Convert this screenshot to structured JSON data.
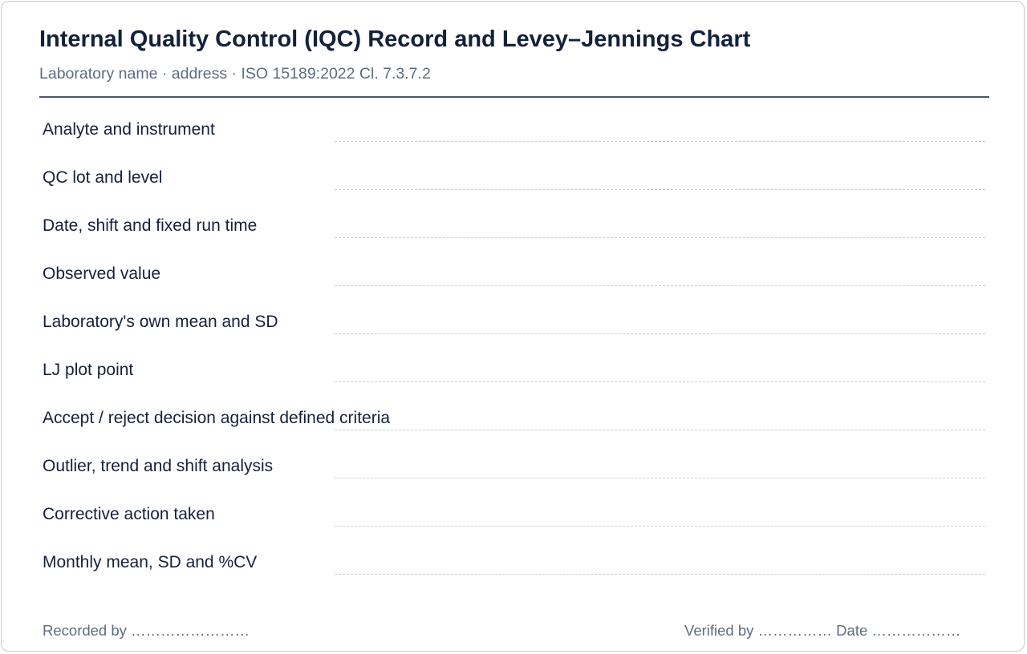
{
  "header": {
    "title": "Internal Quality Control (IQC) Record and Levey–Jennings Chart",
    "subtitle": "Laboratory name · address · ISO 15189:2022 Cl. 7.3.7.2"
  },
  "fields": [
    {
      "label": "Analyte and instrument",
      "value": ""
    },
    {
      "label": "QC lot and level",
      "value": ""
    },
    {
      "label": "Date, shift and fixed run time",
      "value": ""
    },
    {
      "label": "Observed value",
      "value": ""
    },
    {
      "label": "Laboratory's own mean and SD",
      "value": ""
    },
    {
      "label": "LJ plot point",
      "value": ""
    },
    {
      "label": "Accept / reject decision against defined criteria",
      "value": ""
    },
    {
      "label": "Outlier, trend and shift analysis",
      "value": ""
    },
    {
      "label": "Corrective action taken",
      "value": ""
    },
    {
      "label": "Monthly mean, SD and %CV",
      "value": ""
    }
  ],
  "footer": {
    "recorded_by": "Recorded by ……………………",
    "verified_by": "Verified by …………… Date ………………"
  }
}
